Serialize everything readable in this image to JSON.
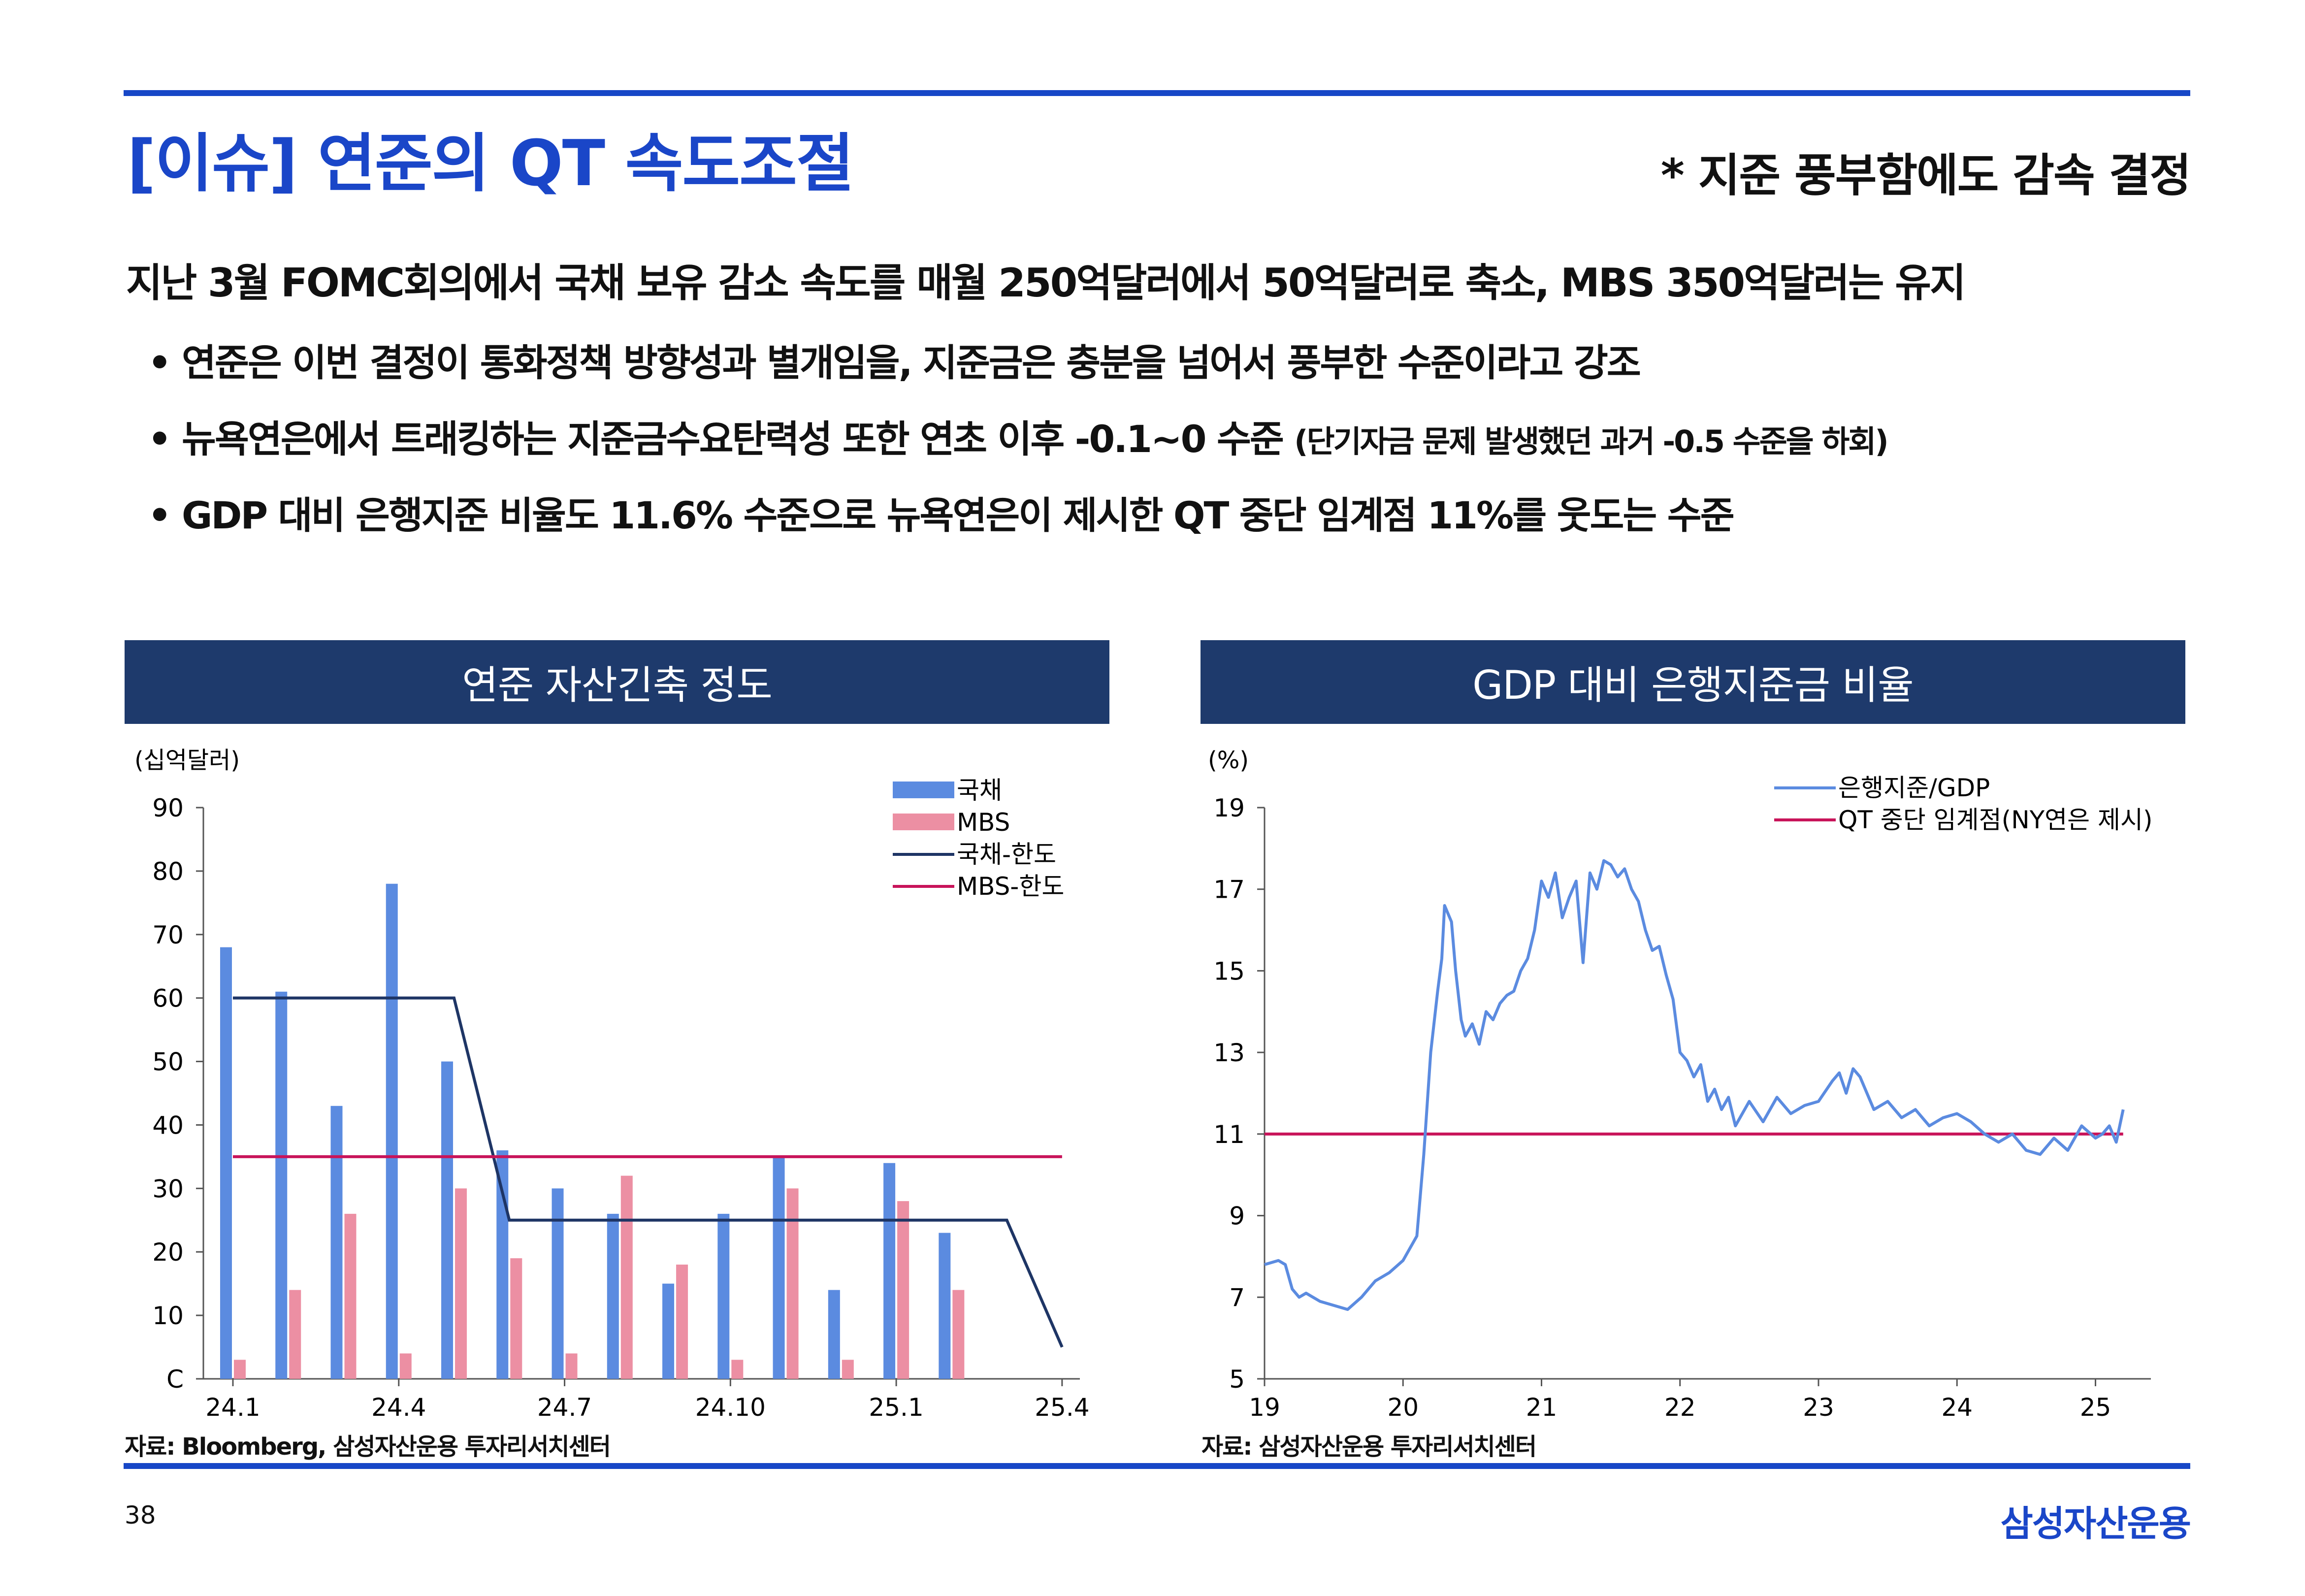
{
  "title": "[이슈] 연준의 QT 속도조절",
  "subtitle_note": "* 지준 풍부함에도 감속 결정",
  "headline": "지난 3월 FOMC회의에서 국채 보유 감소 속도를 매월 250억달러에서 50억달러로 축소, MBS 350억달러는 유지",
  "bullets": [
    {
      "text": "• 연준은 이번 결정이 통화정책 방향성과 별개임을, 지준금은 충분을 넘어서 풍부한 수준이라고 강조",
      "note": ""
    },
    {
      "text": "• 뉴욕연은에서 트래킹하는 지준금수요탄력성 또한 연초 이후 -0.1~0 수준",
      "note": "(단기자금 문제 발생했던 과거 -0.5 수준을 하회)"
    },
    {
      "text": "• GDP 대비 은행지준 비율도 11.6% 수준으로 뉴욕연은이 제시한 QT 중단 임계점 11%를 웃도는 수준",
      "note": ""
    }
  ],
  "chart1_header": "연준 자산긴축 정도",
  "chart2_header": "GDP 대비 은행지준금 비율",
  "source1": "자료: Bloomberg, 삼성자산운용 투자리서치센터",
  "source2": "자료: 삼성자산운용 투자리서치센터",
  "page_number": "38",
  "brand": "삼성자산운용",
  "colors": {
    "accent_blue": "#1a46c8",
    "header_navy": "#1e3a6c",
    "bar_treasury": "#5b8be0",
    "bar_mbs": "#ec8fa3",
    "cap_treasury": "#1e3565",
    "cap_mbs": "#c8145a",
    "line_reserves": "#5b8be0"
  },
  "chart_data": [
    {
      "type": "bar",
      "unit_label": "(십억달러)",
      "categories": [
        "24.1",
        "24.2",
        "24.3",
        "24.4",
        "24.5",
        "24.6",
        "24.7",
        "24.8",
        "24.9",
        "24.10",
        "24.11",
        "24.12",
        "25.1",
        "25.2"
      ],
      "x_tick_labels": [
        "24.1",
        "24.4",
        "24.7",
        "24.10",
        "25.1",
        "25.4"
      ],
      "series": [
        {
          "name": "국채",
          "values": [
            68,
            61,
            43,
            78,
            50,
            36,
            30,
            26,
            15,
            26,
            35,
            14,
            34,
            23
          ]
        },
        {
          "name": "MBS",
          "values": [
            3,
            14,
            26,
            4,
            30,
            19,
            4,
            32,
            18,
            3,
            30,
            3,
            28,
            14
          ]
        }
      ],
      "lines": [
        {
          "name": "국채-한도",
          "x": [
            "24.1",
            "24.2",
            "24.3",
            "24.4",
            "24.5",
            "24.6",
            "24.7",
            "24.8",
            "24.9",
            "24.10",
            "24.11",
            "24.12",
            "25.1",
            "25.2",
            "25.3",
            "25.4"
          ],
          "values": [
            60,
            60,
            60,
            60,
            60,
            25,
            25,
            25,
            25,
            25,
            25,
            25,
            25,
            25,
            25,
            5
          ]
        },
        {
          "name": "MBS-한도",
          "x": [
            "24.1",
            "25.4"
          ],
          "values": [
            35,
            35
          ]
        }
      ],
      "ylim": [
        0,
        90
      ],
      "y_tick_labels": [
        "C",
        "10",
        "20",
        "30",
        "40",
        "50",
        "60",
        "70",
        "80",
        "90"
      ],
      "legend": [
        "국채",
        "MBS",
        "국채-한도",
        "MBS-한도"
      ],
      "legend_position": "top-right",
      "grid": false
    },
    {
      "type": "line",
      "unit_label": "(%)",
      "x_tick_labels": [
        "19",
        "20",
        "21",
        "22",
        "23",
        "24",
        "25"
      ],
      "y_tick_labels": [
        "5",
        "7",
        "9",
        "11",
        "13",
        "15",
        "17",
        "19"
      ],
      "ylim": [
        5,
        19
      ],
      "xlim": [
        2019.0,
        2025.4
      ],
      "series": [
        {
          "name": "은행지준/GDP",
          "x": [
            2019.0,
            2019.1,
            2019.15,
            2019.2,
            2019.25,
            2019.3,
            2019.4,
            2019.5,
            2019.6,
            2019.7,
            2019.75,
            2019.8,
            2019.9,
            2020.0,
            2020.1,
            2020.15,
            2020.2,
            2020.25,
            2020.28,
            2020.3,
            2020.35,
            2020.38,
            2020.42,
            2020.45,
            2020.5,
            2020.55,
            2020.6,
            2020.65,
            2020.7,
            2020.75,
            2020.8,
            2020.85,
            2020.9,
            2020.95,
            2021.0,
            2021.05,
            2021.1,
            2021.15,
            2021.2,
            2021.25,
            2021.3,
            2021.35,
            2021.4,
            2021.45,
            2021.5,
            2021.55,
            2021.6,
            2021.65,
            2021.7,
            2021.75,
            2021.8,
            2021.85,
            2021.9,
            2021.95,
            2022.0,
            2022.05,
            2022.1,
            2022.15,
            2022.2,
            2022.25,
            2022.3,
            2022.35,
            2022.4,
            2022.5,
            2022.6,
            2022.7,
            2022.8,
            2022.9,
            2023.0,
            2023.1,
            2023.15,
            2023.2,
            2023.25,
            2023.3,
            2023.4,
            2023.5,
            2023.6,
            2023.7,
            2023.8,
            2023.9,
            2024.0,
            2024.1,
            2024.2,
            2024.3,
            2024.4,
            2024.5,
            2024.6,
            2024.7,
            2024.8,
            2024.9,
            2025.0,
            2025.05,
            2025.1,
            2025.15,
            2025.2
          ],
          "values": [
            7.8,
            7.9,
            7.8,
            7.2,
            7.0,
            7.1,
            6.9,
            6.8,
            6.7,
            7.0,
            7.2,
            7.4,
            7.6,
            7.9,
            8.5,
            10.5,
            13.0,
            14.5,
            15.3,
            16.6,
            16.2,
            15.0,
            13.8,
            13.4,
            13.7,
            13.2,
            14.0,
            13.8,
            14.2,
            14.4,
            14.5,
            15.0,
            15.3,
            16.0,
            17.2,
            16.8,
            17.4,
            16.3,
            16.8,
            17.2,
            15.2,
            17.4,
            17.0,
            17.7,
            17.6,
            17.3,
            17.5,
            17.0,
            16.7,
            16.0,
            15.5,
            15.6,
            14.9,
            14.3,
            13.0,
            12.8,
            12.4,
            12.7,
            11.8,
            12.1,
            11.6,
            11.9,
            11.2,
            11.8,
            11.3,
            11.9,
            11.5,
            11.7,
            11.8,
            12.3,
            12.5,
            12.0,
            12.6,
            12.4,
            11.6,
            11.8,
            11.4,
            11.6,
            11.2,
            11.4,
            11.5,
            11.3,
            11.0,
            10.8,
            11.0,
            10.6,
            10.5,
            10.9,
            10.6,
            11.2,
            10.9,
            11.0,
            11.2,
            10.8,
            11.6
          ]
        },
        {
          "name": "QT 중단 임계점(NY연은 제시)",
          "x": [
            2019.0,
            2025.2
          ],
          "values": [
            11,
            11
          ]
        }
      ],
      "legend": [
        "은행지준/GDP",
        "QT 중단 임계점(NY연은 제시)"
      ],
      "legend_position": "top-right",
      "grid": false
    }
  ]
}
